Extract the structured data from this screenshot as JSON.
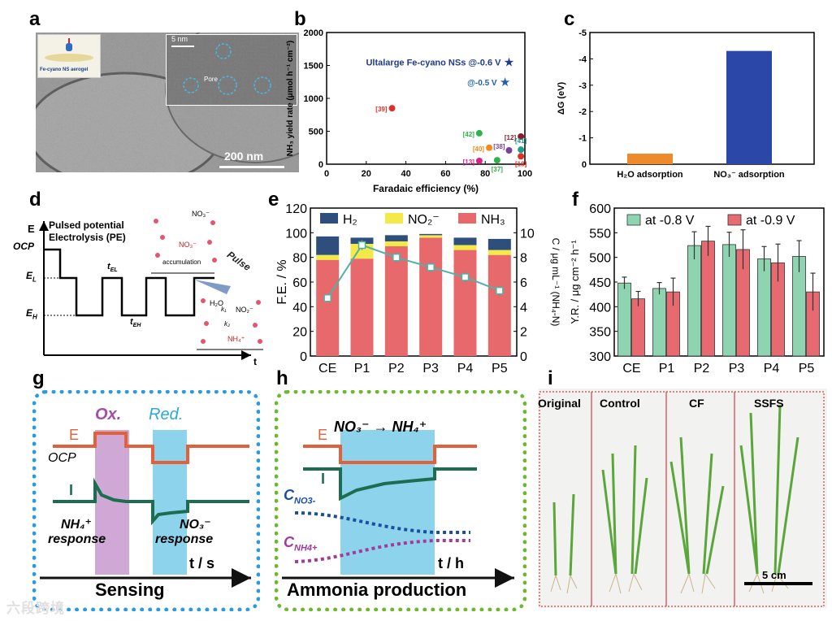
{
  "labels": {
    "a": "a",
    "b": "b",
    "c": "c",
    "d": "d",
    "e": "e",
    "f": "f",
    "g": "g",
    "h": "h",
    "i": "i"
  },
  "panel_a": {
    "inset_caption": "Fe-cyano NS aerogel",
    "hr_scale": "5 nm",
    "pore_label": "Pore",
    "scale_bar": "200 nm"
  },
  "panel_d": {
    "title_line1": "Pulsed potential",
    "title_line2": "Electrolysis (PE)",
    "y_E": "E",
    "y_OCP": "OCP",
    "y_EL": "E",
    "y_EL_sub": "L",
    "y_EH": "E",
    "y_EH_sub": "H",
    "t_EL": "t",
    "t_EL_sub": "EL",
    "t_EH": "t",
    "t_EH_sub": "EH",
    "x_t": "t",
    "pulse_word": "Pulse",
    "accumulation": "accumulation",
    "no3_top": "NO₃⁻",
    "no3_mid": "NO₃⁻",
    "no2": "NO₂⁻",
    "h2o": "H₂O",
    "k1": "k₁",
    "k2": "k₂",
    "nh4": "NH₄⁺"
  },
  "panel_g": {
    "E": "E",
    "OCP": "OCP",
    "I": "I",
    "ox": "Ox.",
    "red": "Red.",
    "nh4_resp_1": "NH₄⁺",
    "nh4_resp_2": "response",
    "no3_resp_1": "NO₃⁻",
    "no3_resp_2": "response",
    "axis": "t / s",
    "footer": "Sensing"
  },
  "panel_h": {
    "E": "E",
    "I": "I",
    "reaction": "NO₃⁻ → NH₄⁺",
    "c_no3": "C",
    "c_no3_sub": "NO3-",
    "c_nh4": "C",
    "c_nh4_sub": "NH4+",
    "axis": "t / h",
    "footer": "Ammonia production"
  },
  "panel_i": {
    "titles": [
      "Original",
      "Control",
      "CF",
      "SSFS"
    ],
    "scale": "5 cm"
  },
  "watermark": "六段跨境",
  "chart_data": [
    {
      "id": "b",
      "type": "scatter",
      "xlabel": "Faradaic efficiency (%)",
      "ylabel": "NH₃ yield rate (μmol h⁻¹ cm⁻²)",
      "xlim": [
        0,
        100
      ],
      "ylim": [
        0,
        2000
      ],
      "xticks": [
        0,
        20,
        40,
        60,
        80,
        100
      ],
      "yticks": [
        0,
        500,
        1000,
        1500,
        2000
      ],
      "highlight": [
        {
          "label": "Ultalarge Fe-cyano NSs @-0.6 V",
          "x": 92,
          "y": 1550,
          "color": "#1f3a93"
        },
        {
          "label": "@-0.5 V",
          "x": 90,
          "y": 1250,
          "color": "#1f5faa"
        }
      ],
      "points": [
        {
          "label": "[39]",
          "x": 33,
          "y": 850,
          "color": "#e0302a"
        },
        {
          "label": "[42]",
          "x": 77,
          "y": 470,
          "color": "#2db34a"
        },
        {
          "label": "[12]",
          "x": 98,
          "y": 420,
          "color": "#8b1a2b"
        },
        {
          "label": "[40]",
          "x": 82,
          "y": 250,
          "color": "#f08a1c"
        },
        {
          "label": "[38]",
          "x": 92,
          "y": 210,
          "color": "#7b3fa0"
        },
        {
          "label": "[41]",
          "x": 98,
          "y": 220,
          "color": "#1aa08a"
        },
        {
          "label": "[13]",
          "x": 77,
          "y": 50,
          "color": "#d6248c"
        },
        {
          "label": "[37]",
          "x": 86,
          "y": 60,
          "color": "#2db34a"
        },
        {
          "label": "[18]",
          "x": 98,
          "y": 120,
          "color": "#e0302a"
        }
      ]
    },
    {
      "id": "c",
      "type": "bar",
      "ylabel": "ΔG (eV)",
      "categories": [
        "H₂O adsorption",
        "NO₃⁻ adsorption"
      ],
      "values": [
        -0.4,
        -4.3
      ],
      "ylim": [
        0,
        -5
      ],
      "yticks": [
        "0",
        "-1",
        "-2",
        "-3",
        "-4",
        "-5"
      ],
      "colors": [
        "#ef8a2a",
        "#2b48a8"
      ]
    },
    {
      "id": "e",
      "type": "bar",
      "stacked": true,
      "categories": [
        "CE",
        "P1",
        "P2",
        "P3",
        "P4",
        "P5"
      ],
      "ylabel_left": "F.E. / %",
      "ylabel_right": "C / μg mL⁻¹ (NH₄-N)",
      "ylim_left": [
        0,
        120
      ],
      "ylim_right": [
        0,
        12
      ],
      "yticks_left": [
        0,
        20,
        40,
        60,
        80,
        100,
        120
      ],
      "yticks_right": [
        0,
        2,
        4,
        6,
        8,
        10
      ],
      "series": [
        {
          "name": "NH₃",
          "values": [
            78,
            79,
            89,
            96,
            86,
            82
          ],
          "color": "#e8696b"
        },
        {
          "name": "NO₂⁻",
          "values": [
            4,
            12,
            4,
            2,
            4,
            4
          ],
          "color": "#f3ea4a"
        },
        {
          "name": "H₂",
          "values": [
            15,
            5,
            5,
            1,
            6,
            9
          ],
          "color": "#2e4e7c"
        }
      ],
      "line": {
        "name": "C (NH₄-N)",
        "values": [
          4.7,
          9.0,
          8.0,
          7.2,
          6.4,
          5.3
        ],
        "errors": [
          0.2,
          0.4,
          0.4,
          0.4,
          0.4,
          0.4
        ],
        "color": "#4fb2a6"
      },
      "legend": [
        "H₂",
        "NO₂⁻",
        "NH₃"
      ]
    },
    {
      "id": "f",
      "type": "bar",
      "categories": [
        "CE",
        "P1",
        "P2",
        "P3",
        "P4",
        "P5"
      ],
      "ylabel": "Y.R. / μg cm⁻² h⁻¹",
      "ylim": [
        300,
        600
      ],
      "yticks": [
        300,
        350,
        400,
        450,
        500,
        550,
        600
      ],
      "series": [
        {
          "name": "at -0.8 V",
          "values": [
            448,
            437,
            524,
            526,
            497,
            502
          ],
          "errors": [
            12,
            12,
            28,
            25,
            25,
            32
          ],
          "color": "#8fd4b0"
        },
        {
          "name": "at -0.9 V",
          "values": [
            416,
            430,
            533,
            516,
            489,
            430
          ],
          "errors": [
            15,
            28,
            30,
            40,
            38,
            38
          ],
          "color": "#e66a6f"
        }
      ]
    }
  ]
}
